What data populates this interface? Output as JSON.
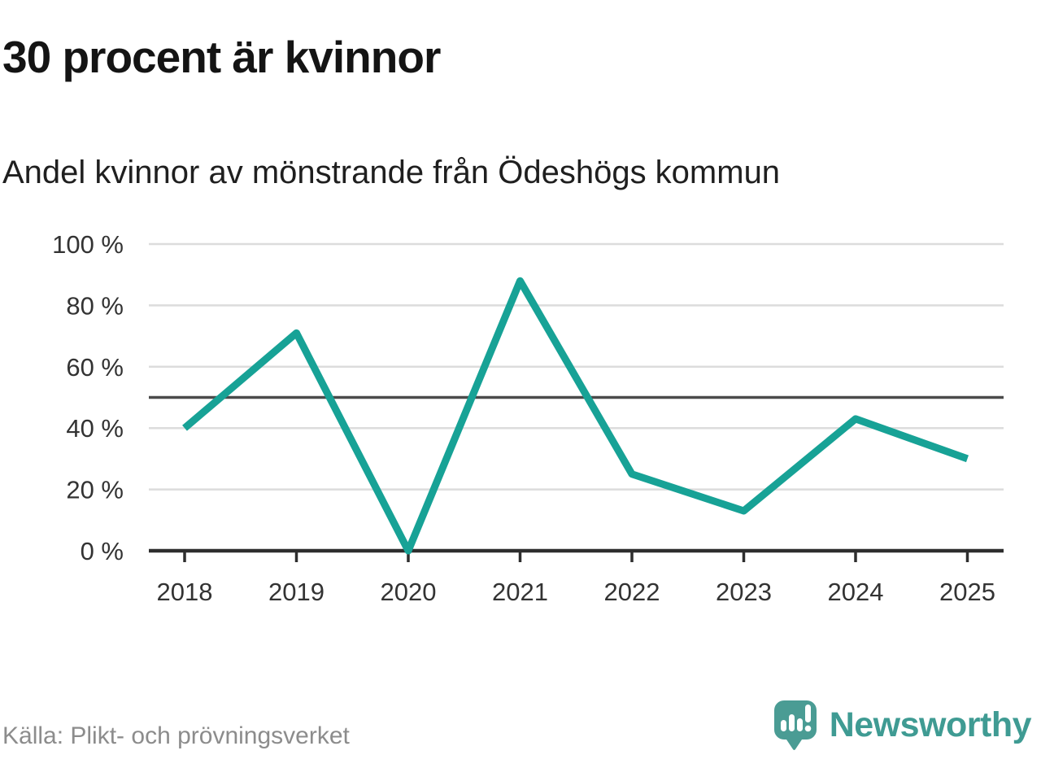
{
  "header": {
    "title": "30 procent är kvinnor",
    "subtitle": "Andel kvinnor av mönstrande från Ödeshögs kommun"
  },
  "chart_data": {
    "type": "line",
    "title": "30 procent är kvinnor",
    "subtitle": "Andel kvinnor av mönstrande från Ödeshögs kommun",
    "categories": [
      "2018",
      "2019",
      "2020",
      "2021",
      "2022",
      "2023",
      "2024",
      "2025"
    ],
    "series": [
      {
        "name": "Andel kvinnor",
        "values": [
          40,
          71,
          0,
          88,
          25,
          13,
          43,
          30
        ],
        "color": "#17a296"
      }
    ],
    "xlabel": "",
    "ylabel": "",
    "ylim": [
      0,
      100
    ],
    "yticks": [
      0,
      20,
      40,
      60,
      80,
      100
    ],
    "ytick_suffix": " %",
    "reference_line": {
      "value": 50,
      "color": "#4b4b4b"
    },
    "grid": true,
    "legend_position": "none"
  },
  "footer": {
    "source": "Källa: Plikt- och prövningsverket",
    "logo_text": "Newsworthy"
  },
  "colors": {
    "accent_teal": "#17a296",
    "logo_teal": "#4a9c94",
    "grid": "#dcdcdc",
    "axis": "#2e2e2e",
    "reference": "#4b4b4b",
    "text_dark": "#141414",
    "muted_text": "#8c8c8c"
  }
}
